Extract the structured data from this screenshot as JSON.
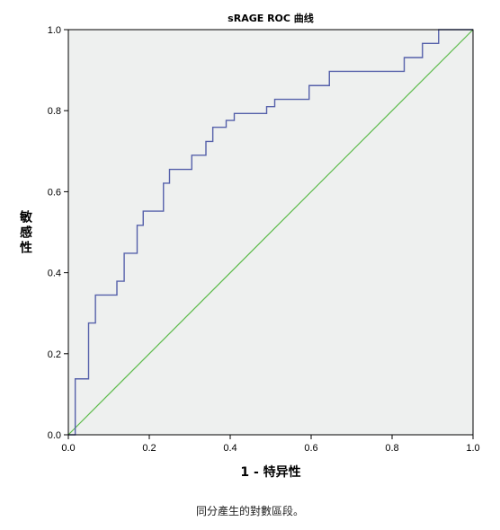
{
  "chart_data": {
    "type": "line",
    "title": "sRAGE ROC 曲线",
    "xlabel": "1 - 特异性",
    "ylabel": "敏感性",
    "xlim": [
      0.0,
      1.0
    ],
    "ylim": [
      0.0,
      1.0
    ],
    "xticks": [
      "0.0",
      "0.2",
      "0.4",
      "0.6",
      "0.8",
      "1.0"
    ],
    "yticks": [
      "0.0",
      "0.2",
      "0.4",
      "0.6",
      "0.8",
      "1.0"
    ],
    "grid": false,
    "colors": {
      "roc": "#5560aa",
      "reference": "#5cbb4a",
      "plot_bg": "#eef0ef"
    },
    "series": [
      {
        "x": [
          0.0,
          0.017,
          0.017,
          0.05,
          0.05,
          0.067,
          0.067,
          0.12,
          0.12,
          0.138,
          0.138,
          0.17,
          0.17,
          0.185,
          0.185,
          0.235,
          0.235,
          0.25,
          0.25,
          0.305,
          0.305,
          0.34,
          0.34,
          0.357,
          0.357,
          0.39,
          0.39,
          0.41,
          0.41,
          0.49,
          0.49,
          0.51,
          0.51,
          0.595,
          0.595,
          0.645,
          0.645,
          0.83,
          0.83,
          0.875,
          0.875,
          0.915,
          0.915,
          1.0
        ],
        "y": [
          0.0,
          0.0,
          0.138,
          0.138,
          0.276,
          0.276,
          0.345,
          0.345,
          0.379,
          0.379,
          0.448,
          0.448,
          0.517,
          0.517,
          0.552,
          0.552,
          0.621,
          0.621,
          0.655,
          0.655,
          0.69,
          0.69,
          0.724,
          0.724,
          0.759,
          0.759,
          0.776,
          0.776,
          0.793,
          0.793,
          0.81,
          0.81,
          0.828,
          0.828,
          0.862,
          0.862,
          0.897,
          0.897,
          0.931,
          0.931,
          0.966,
          0.966,
          1.0,
          1.0
        ]
      },
      {
        "x": [
          0.0,
          1.0
        ],
        "y": [
          0.0,
          1.0
        ]
      }
    ]
  },
  "footnote": "同分產生的對數區段。"
}
